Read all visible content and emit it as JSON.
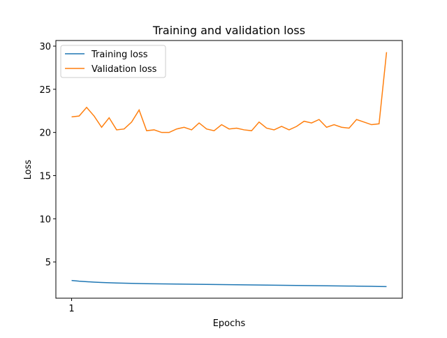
{
  "chart_data": {
    "type": "line",
    "title": "Training and validation loss",
    "xlabel": "Epochs",
    "ylabel": "Loss",
    "x": [
      1,
      2,
      3,
      4,
      5,
      6,
      7,
      8,
      9,
      10,
      11,
      12,
      13,
      14,
      15,
      16,
      17,
      18,
      19,
      20,
      21,
      22,
      23,
      24,
      25,
      26,
      27,
      28,
      29,
      30,
      31,
      32,
      33,
      34,
      35,
      36,
      37,
      38,
      39,
      40,
      41,
      42,
      43
    ],
    "series": [
      {
        "name": "Training loss",
        "color": "#1f77b4",
        "values": [
          2.85,
          2.77,
          2.71,
          2.66,
          2.62,
          2.59,
          2.56,
          2.54,
          2.52,
          2.5,
          2.48,
          2.47,
          2.46,
          2.45,
          2.44,
          2.43,
          2.42,
          2.41,
          2.4,
          2.39,
          2.38,
          2.37,
          2.36,
          2.35,
          2.34,
          2.33,
          2.32,
          2.31,
          2.3,
          2.29,
          2.28,
          2.27,
          2.26,
          2.25,
          2.24,
          2.23,
          2.22,
          2.21,
          2.2,
          2.19,
          2.18,
          2.16,
          2.14
        ]
      },
      {
        "name": "Validation loss",
        "color": "#ff7f0e",
        "values": [
          21.8,
          21.9,
          22.9,
          21.9,
          20.6,
          21.7,
          20.3,
          20.4,
          21.2,
          22.6,
          20.2,
          20.3,
          20.0,
          20.0,
          20.4,
          20.6,
          20.3,
          21.1,
          20.4,
          20.2,
          20.9,
          20.4,
          20.5,
          20.3,
          20.2,
          21.2,
          20.5,
          20.3,
          20.7,
          20.3,
          20.7,
          21.3,
          21.1,
          21.5,
          20.6,
          20.9,
          20.6,
          20.5,
          21.5,
          21.2,
          20.9,
          21.0,
          29.3
        ]
      }
    ],
    "xlim": [
      -1.1,
      45.1
    ],
    "xticks": [
      1
    ],
    "ylim": [
      0.8,
      30.65
    ],
    "yticks": [
      5,
      10,
      15,
      20,
      25,
      30
    ],
    "legend": "upper left"
  }
}
